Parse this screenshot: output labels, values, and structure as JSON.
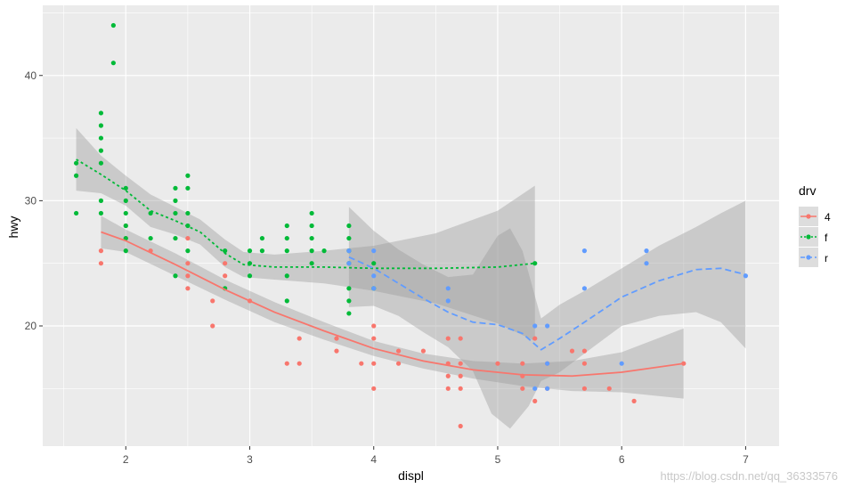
{
  "chart_data": {
    "type": "scatter",
    "xlabel": "displ",
    "ylabel": "hwy",
    "xlim": [
      1.33,
      7.27
    ],
    "ylim": [
      10.4,
      45.6
    ],
    "x_ticks": [
      2,
      3,
      4,
      5,
      6,
      7
    ],
    "y_ticks": [
      20,
      30,
      40
    ],
    "x_tick_labels": [
      "2",
      "3",
      "4",
      "5",
      "6",
      "7"
    ],
    "y_tick_labels": [
      "20",
      "30",
      "40"
    ],
    "grid": true,
    "legend_title": "drv",
    "legend_position": "right",
    "series": [
      {
        "name": "4",
        "color": "#F8766D",
        "line_style": "solid",
        "points": [
          [
            1.8,
            26
          ],
          [
            1.8,
            25
          ],
          [
            2.0,
            28
          ],
          [
            2.0,
            27
          ],
          [
            2.2,
            26
          ],
          [
            2.5,
            27
          ],
          [
            2.5,
            25
          ],
          [
            2.5,
            24
          ],
          [
            2.5,
            23
          ],
          [
            2.7,
            22
          ],
          [
            2.7,
            20
          ],
          [
            2.8,
            25
          ],
          [
            2.8,
            24
          ],
          [
            3.0,
            22
          ],
          [
            3.3,
            17
          ],
          [
            3.4,
            19
          ],
          [
            3.4,
            17
          ],
          [
            3.7,
            19
          ],
          [
            3.7,
            18
          ],
          [
            3.9,
            17
          ],
          [
            4.0,
            20
          ],
          [
            4.0,
            19
          ],
          [
            4.0,
            17
          ],
          [
            4.0,
            15
          ],
          [
            4.2,
            18
          ],
          [
            4.2,
            17
          ],
          [
            4.4,
            18
          ],
          [
            4.6,
            17
          ],
          [
            4.6,
            16
          ],
          [
            4.6,
            15
          ],
          [
            4.6,
            19
          ],
          [
            4.7,
            19
          ],
          [
            4.7,
            17
          ],
          [
            4.7,
            16
          ],
          [
            4.7,
            15
          ],
          [
            4.7,
            12
          ],
          [
            5.0,
            17
          ],
          [
            5.2,
            17
          ],
          [
            5.2,
            16
          ],
          [
            5.2,
            15
          ],
          [
            5.3,
            19
          ],
          [
            5.3,
            14
          ],
          [
            5.4,
            17
          ],
          [
            5.4,
            15
          ],
          [
            5.6,
            18
          ],
          [
            5.7,
            18
          ],
          [
            5.7,
            17
          ],
          [
            5.7,
            15
          ],
          [
            5.9,
            15
          ],
          [
            6.1,
            14
          ],
          [
            6.5,
            17
          ]
        ],
        "smooth": [
          [
            1.8,
            27.5
          ],
          [
            2.0,
            26.8
          ],
          [
            2.4,
            24.9
          ],
          [
            2.8,
            22.9
          ],
          [
            3.2,
            21.1
          ],
          [
            3.6,
            19.6
          ],
          [
            4.0,
            18.2
          ],
          [
            4.4,
            17.2
          ],
          [
            4.8,
            16.5
          ],
          [
            5.2,
            16.1
          ],
          [
            5.6,
            16.0
          ],
          [
            6.0,
            16.3
          ],
          [
            6.5,
            17.0
          ]
        ],
        "band_upper": [
          [
            1.8,
            28.8
          ],
          [
            2.0,
            27.7
          ],
          [
            2.4,
            25.8
          ],
          [
            2.8,
            23.7
          ],
          [
            3.2,
            21.9
          ],
          [
            3.6,
            20.3
          ],
          [
            4.0,
            18.8
          ],
          [
            4.4,
            17.8
          ],
          [
            4.8,
            17.2
          ],
          [
            5.2,
            17.0
          ],
          [
            5.6,
            17.2
          ],
          [
            6.0,
            17.9
          ],
          [
            6.5,
            19.8
          ]
        ],
        "band_lower": [
          [
            1.8,
            26.2
          ],
          [
            2.0,
            25.9
          ],
          [
            2.4,
            24.0
          ],
          [
            2.8,
            22.1
          ],
          [
            3.2,
            20.3
          ],
          [
            3.6,
            18.9
          ],
          [
            4.0,
            17.6
          ],
          [
            4.4,
            16.6
          ],
          [
            4.8,
            15.8
          ],
          [
            5.2,
            15.2
          ],
          [
            5.6,
            14.8
          ],
          [
            6.0,
            14.7
          ],
          [
            6.5,
            14.2
          ]
        ]
      },
      {
        "name": "f",
        "color": "#00BA38",
        "line_style": "dotted",
        "points": [
          [
            1.6,
            33
          ],
          [
            1.6,
            32
          ],
          [
            1.6,
            29
          ],
          [
            1.8,
            37
          ],
          [
            1.8,
            36
          ],
          [
            1.8,
            35
          ],
          [
            1.8,
            34
          ],
          [
            1.8,
            33
          ],
          [
            1.8,
            30
          ],
          [
            1.8,
            29
          ],
          [
            1.9,
            44
          ],
          [
            1.9,
            41
          ],
          [
            2.0,
            31
          ],
          [
            2.0,
            30
          ],
          [
            2.0,
            29
          ],
          [
            2.0,
            28
          ],
          [
            2.0,
            27
          ],
          [
            2.0,
            26
          ],
          [
            2.2,
            29
          ],
          [
            2.2,
            27
          ],
          [
            2.4,
            31
          ],
          [
            2.4,
            30
          ],
          [
            2.4,
            29
          ],
          [
            2.4,
            27
          ],
          [
            2.4,
            24
          ],
          [
            2.5,
            32
          ],
          [
            2.5,
            31
          ],
          [
            2.5,
            29
          ],
          [
            2.5,
            28
          ],
          [
            2.5,
            26
          ],
          [
            2.8,
            26
          ],
          [
            2.8,
            23
          ],
          [
            3.0,
            26
          ],
          [
            3.0,
            25
          ],
          [
            3.0,
            24
          ],
          [
            3.1,
            27
          ],
          [
            3.1,
            26
          ],
          [
            3.3,
            28
          ],
          [
            3.3,
            27
          ],
          [
            3.3,
            26
          ],
          [
            3.3,
            24
          ],
          [
            3.3,
            22
          ],
          [
            3.5,
            29
          ],
          [
            3.5,
            28
          ],
          [
            3.5,
            27
          ],
          [
            3.5,
            26
          ],
          [
            3.5,
            25
          ],
          [
            3.6,
            26
          ],
          [
            3.8,
            28
          ],
          [
            3.8,
            27
          ],
          [
            3.8,
            26
          ],
          [
            3.8,
            25
          ],
          [
            3.8,
            23
          ],
          [
            3.8,
            22
          ],
          [
            3.8,
            21
          ],
          [
            4.0,
            23
          ],
          [
            4.0,
            25
          ],
          [
            5.3,
            25
          ]
        ],
        "smooth": [
          [
            1.6,
            33.3
          ],
          [
            1.8,
            32.1
          ],
          [
            2.0,
            30.8
          ],
          [
            2.2,
            29.2
          ],
          [
            2.4,
            28.4
          ],
          [
            2.6,
            27.5
          ],
          [
            2.8,
            25.8
          ],
          [
            2.95,
            24.9
          ],
          [
            3.2,
            24.7
          ],
          [
            3.6,
            24.7
          ],
          [
            4.0,
            24.6
          ],
          [
            4.5,
            24.6
          ],
          [
            5.0,
            24.7
          ],
          [
            5.3,
            25.0
          ]
        ],
        "band_upper": [
          [
            1.6,
            35.8
          ],
          [
            1.8,
            33.6
          ],
          [
            2.0,
            32.0
          ],
          [
            2.2,
            30.5
          ],
          [
            2.4,
            29.5
          ],
          [
            2.6,
            28.5
          ],
          [
            2.8,
            26.9
          ],
          [
            2.95,
            25.9
          ],
          [
            3.2,
            25.7
          ],
          [
            3.6,
            26.0
          ],
          [
            4.0,
            26.4
          ],
          [
            4.5,
            27.4
          ],
          [
            5.0,
            29.2
          ],
          [
            5.3,
            31.2
          ]
        ],
        "band_lower": [
          [
            1.6,
            30.8
          ],
          [
            1.8,
            30.6
          ],
          [
            2.0,
            29.6
          ],
          [
            2.2,
            27.9
          ],
          [
            2.4,
            27.3
          ],
          [
            2.6,
            26.5
          ],
          [
            2.8,
            24.7
          ],
          [
            2.95,
            23.9
          ],
          [
            3.2,
            23.7
          ],
          [
            3.6,
            23.4
          ],
          [
            4.0,
            22.8
          ],
          [
            4.5,
            21.8
          ],
          [
            5.0,
            20.2
          ],
          [
            5.3,
            18.8
          ]
        ]
      },
      {
        "name": "r",
        "color": "#619CFF",
        "line_style": "dashed",
        "points": [
          [
            3.8,
            26
          ],
          [
            3.8,
            25
          ],
          [
            4.0,
            26
          ],
          [
            4.0,
            24
          ],
          [
            4.0,
            23
          ],
          [
            4.6,
            23
          ],
          [
            4.6,
            22
          ],
          [
            5.3,
            20
          ],
          [
            5.3,
            15
          ],
          [
            5.4,
            20
          ],
          [
            5.4,
            17
          ],
          [
            5.4,
            15
          ],
          [
            5.7,
            26
          ],
          [
            5.7,
            23
          ],
          [
            6.0,
            17
          ],
          [
            6.2,
            26
          ],
          [
            6.2,
            25
          ],
          [
            7.0,
            24
          ]
        ],
        "smooth": [
          [
            3.8,
            25.5
          ],
          [
            4.0,
            24.6
          ],
          [
            4.2,
            23.4
          ],
          [
            4.4,
            22.2
          ],
          [
            4.6,
            21.1
          ],
          [
            4.8,
            20.3
          ],
          [
            5.0,
            20.1
          ],
          [
            5.2,
            19.4
          ],
          [
            5.35,
            18.1
          ],
          [
            5.5,
            19.0
          ],
          [
            5.7,
            20.3
          ],
          [
            6.0,
            22.3
          ],
          [
            6.3,
            23.6
          ],
          [
            6.6,
            24.5
          ],
          [
            6.8,
            24.6
          ],
          [
            7.0,
            24.1
          ]
        ],
        "band_upper": [
          [
            3.8,
            29.5
          ],
          [
            4.0,
            27.6
          ],
          [
            4.2,
            26.1
          ],
          [
            4.4,
            24.9
          ],
          [
            4.6,
            23.9
          ],
          [
            4.8,
            24.1
          ],
          [
            5.0,
            27.2
          ],
          [
            5.1,
            27.8
          ],
          [
            5.2,
            26.0
          ],
          [
            5.35,
            20.6
          ],
          [
            5.5,
            21.7
          ],
          [
            5.7,
            22.8
          ],
          [
            6.0,
            24.6
          ],
          [
            6.3,
            26.4
          ],
          [
            6.6,
            27.9
          ],
          [
            6.8,
            29.0
          ],
          [
            7.0,
            30.0
          ]
        ],
        "band_lower": [
          [
            3.8,
            21.5
          ],
          [
            4.0,
            21.6
          ],
          [
            4.2,
            20.8
          ],
          [
            4.4,
            19.5
          ],
          [
            4.6,
            18.3
          ],
          [
            4.8,
            16.4
          ],
          [
            4.95,
            13.0
          ],
          [
            5.1,
            11.8
          ],
          [
            5.25,
            13.6
          ],
          [
            5.35,
            15.6
          ],
          [
            5.5,
            16.3
          ],
          [
            5.7,
            17.8
          ],
          [
            6.0,
            20.0
          ],
          [
            6.3,
            20.8
          ],
          [
            6.6,
            21.1
          ],
          [
            6.8,
            20.3
          ],
          [
            7.0,
            18.2
          ]
        ]
      }
    ]
  },
  "watermark": "https://blog.csdn.net/qq_36333576"
}
